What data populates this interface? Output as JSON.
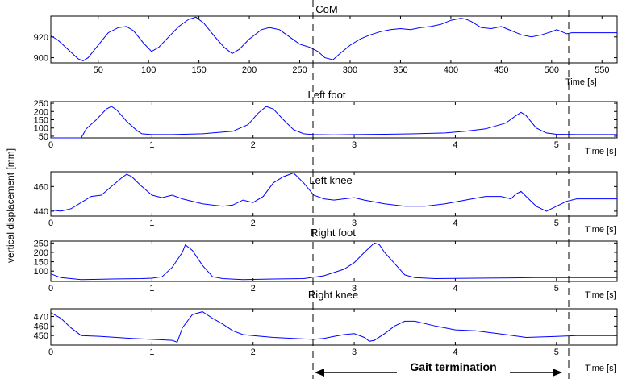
{
  "figure": {
    "ylabel": "vertical displacement [mm]",
    "annotation": "Gait termination",
    "line_color": "#0000ff"
  },
  "chart_data": [
    {
      "type": "line",
      "title": "CoM",
      "xlabel": "Time [s]",
      "xlim": [
        3,
        565
      ],
      "ylim": [
        895,
        940
      ],
      "xticks": [
        "50",
        "100",
        "150",
        "200",
        "250",
        "300",
        "350",
        "400",
        "450",
        "500",
        "550"
      ],
      "xtick_values": [
        50,
        100,
        150,
        200,
        250,
        300,
        350,
        400,
        450,
        500,
        550
      ],
      "yticks": [
        "920",
        "900"
      ],
      "ytick_values": [
        920,
        900
      ],
      "x": [
        3,
        10,
        20,
        30,
        35,
        40,
        50,
        60,
        70,
        78,
        85,
        95,
        103,
        110,
        120,
        130,
        140,
        147,
        155,
        165,
        175,
        183,
        190,
        200,
        212,
        220,
        230,
        240,
        250,
        260,
        268,
        275,
        283,
        290,
        300,
        310,
        320,
        330,
        340,
        350,
        360,
        370,
        380,
        390,
        400,
        410,
        415,
        420,
        430,
        440,
        450,
        460,
        470,
        480,
        490,
        500,
        505,
        510,
        515,
        520,
        530,
        540,
        550,
        565
      ],
      "series": [
        {
          "values": [
            921,
            917,
            908,
            899,
            897,
            900,
            912,
            924,
            929,
            930,
            926,
            914,
            906,
            910,
            920,
            930,
            937,
            939,
            933,
            921,
            910,
            904,
            908,
            918,
            927,
            929,
            927,
            920,
            913,
            910,
            906,
            900,
            898,
            904,
            912,
            918,
            922,
            925,
            927,
            928,
            927,
            929,
            930,
            932,
            936,
            938,
            937,
            935,
            929,
            928,
            930,
            926,
            922,
            920,
            922,
            925,
            927,
            925,
            923,
            924,
            924,
            924,
            924,
            924
          ]
        }
      ]
    },
    {
      "type": "line",
      "title": "Left foot",
      "xlabel": "Time [s]",
      "xlim": [
        0,
        5.6
      ],
      "ylim": [
        40,
        260
      ],
      "xticks": [
        "0",
        "1",
        "2",
        "3",
        "4",
        "5"
      ],
      "xtick_values": [
        0,
        1,
        2,
        3,
        4,
        5
      ],
      "yticks": [
        "250",
        "200",
        "150",
        "100",
        "50"
      ],
      "ytick_values": [
        250,
        200,
        150,
        100,
        50
      ],
      "x": [
        0,
        0.2,
        0.3,
        0.35,
        0.45,
        0.55,
        0.6,
        0.65,
        0.75,
        0.85,
        0.9,
        1.0,
        1.2,
        1.5,
        1.8,
        1.95,
        2.05,
        2.13,
        2.2,
        2.3,
        2.4,
        2.5,
        2.6,
        2.8,
        3.0,
        3.3,
        3.6,
        3.9,
        4.1,
        4.3,
        4.5,
        4.6,
        4.65,
        4.7,
        4.8,
        4.9,
        5.0,
        5.2,
        5.6
      ],
      "series": [
        {
          "values": [
            40,
            40,
            40,
            95,
            150,
            215,
            230,
            210,
            140,
            85,
            65,
            60,
            60,
            65,
            80,
            120,
            190,
            230,
            215,
            150,
            90,
            65,
            60,
            58,
            60,
            62,
            65,
            70,
            80,
            95,
            130,
            175,
            195,
            175,
            100,
            70,
            62,
            60,
            60
          ]
        }
      ]
    },
    {
      "type": "line",
      "title": "Left knee",
      "xlabel": "Time [s]",
      "xlim": [
        0,
        5.6
      ],
      "ylim": [
        436,
        472
      ],
      "xticks": [
        "0",
        "1",
        "2",
        "3",
        "4",
        "5"
      ],
      "xtick_values": [
        0,
        1,
        2,
        3,
        4,
        5
      ],
      "yticks": [
        "460",
        "440"
      ],
      "ytick_values": [
        460,
        440
      ],
      "x": [
        0,
        0.1,
        0.2,
        0.3,
        0.4,
        0.5,
        0.6,
        0.7,
        0.75,
        0.8,
        0.9,
        1.0,
        1.1,
        1.2,
        1.3,
        1.5,
        1.7,
        1.8,
        1.9,
        2.0,
        2.1,
        2.2,
        2.3,
        2.4,
        2.5,
        2.6,
        2.7,
        2.8,
        2.9,
        3.0,
        3.1,
        3.3,
        3.5,
        3.7,
        3.9,
        4.1,
        4.3,
        4.45,
        4.55,
        4.6,
        4.65,
        4.7,
        4.8,
        4.9,
        5.0,
        5.1,
        5.2,
        5.6
      ],
      "series": [
        {
          "values": [
            441,
            440,
            442,
            447,
            452,
            453,
            460,
            467,
            470,
            468,
            460,
            453,
            451,
            453,
            450,
            446,
            444,
            445,
            449,
            447,
            452,
            463,
            468,
            471,
            463,
            453,
            450,
            449,
            450,
            451,
            449,
            446,
            444,
            444,
            446,
            449,
            452,
            452,
            450,
            454,
            456,
            452,
            444,
            440,
            444,
            448,
            450,
            450
          ]
        }
      ]
    },
    {
      "type": "line",
      "title": "Right foot",
      "xlabel": "Time [s]",
      "xlim": [
        0,
        5.6
      ],
      "ylim": [
        45,
        260
      ],
      "xticks": [
        "0",
        "1",
        "2",
        "3",
        "4",
        "5"
      ],
      "xtick_values": [
        0,
        1,
        2,
        3,
        4,
        5
      ],
      "yticks": [
        "250",
        "200",
        "150",
        "100"
      ],
      "ytick_values": [
        250,
        200,
        150,
        100
      ],
      "x": [
        0,
        0.1,
        0.3,
        0.6,
        0.9,
        1.0,
        1.1,
        1.2,
        1.3,
        1.33,
        1.4,
        1.5,
        1.6,
        1.7,
        1.9,
        2.2,
        2.5,
        2.7,
        2.9,
        3.0,
        3.1,
        3.2,
        3.25,
        3.3,
        3.4,
        3.5,
        3.6,
        3.8,
        4.2,
        4.8,
        5.6
      ],
      "series": [
        {
          "values": [
            85,
            65,
            55,
            58,
            60,
            62,
            70,
            120,
            200,
            240,
            210,
            130,
            70,
            60,
            55,
            58,
            60,
            75,
            110,
            145,
            200,
            250,
            240,
            200,
            140,
            80,
            65,
            60,
            62,
            65,
            65
          ]
        }
      ]
    },
    {
      "type": "line",
      "title": "Right knee",
      "xlabel": "Time [s]",
      "xlim": [
        0,
        5.6
      ],
      "ylim": [
        440,
        478
      ],
      "xticks": [
        "0",
        "1",
        "2",
        "3",
        "4",
        "5"
      ],
      "xtick_values": [
        0,
        1,
        2,
        3,
        4,
        5
      ],
      "yticks": [
        "470",
        "460",
        "450"
      ],
      "ytick_values": [
        470,
        460,
        450
      ],
      "x": [
        0,
        0.1,
        0.2,
        0.3,
        0.5,
        0.8,
        1.0,
        1.2,
        1.25,
        1.3,
        1.4,
        1.5,
        1.6,
        1.7,
        1.8,
        1.9,
        2.0,
        2.2,
        2.4,
        2.6,
        2.7,
        2.8,
        2.9,
        3.0,
        3.1,
        3.15,
        3.2,
        3.3,
        3.4,
        3.5,
        3.6,
        3.8,
        4.0,
        4.2,
        4.5,
        4.7,
        5.0,
        5.2,
        5.6
      ],
      "series": [
        {
          "values": [
            474,
            468,
            458,
            450,
            449,
            447,
            446,
            445,
            443,
            458,
            472,
            475,
            468,
            462,
            455,
            451,
            450,
            448,
            447,
            446,
            447,
            449,
            451,
            452,
            448,
            444,
            445,
            452,
            460,
            465,
            465,
            460,
            456,
            455,
            451,
            448,
            449,
            450,
            450
          ]
        }
      ]
    }
  ]
}
